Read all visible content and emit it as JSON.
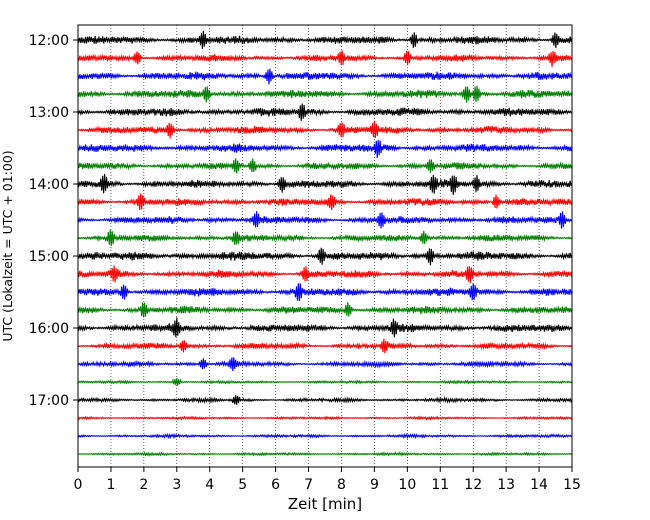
{
  "chart_data": {
    "type": "line",
    "xlabel": "Zeit  [min]",
    "ylabel": "UTC (Lokalzeit = UTC + 01:00)",
    "xlim": [
      0,
      15
    ],
    "x_ticks": [
      "0",
      "1",
      "2",
      "3",
      "4",
      "5",
      "6",
      "7",
      "8",
      "9",
      "10",
      "11",
      "12",
      "13",
      "14",
      "15"
    ],
    "y_ticks": [
      "12:00",
      "13:00",
      "14:00",
      "15:00",
      "16:00",
      "17:00"
    ],
    "grid": "vertical-dotted",
    "trace_interval_min": 15,
    "trace_colors": [
      "#000000",
      "#ff0000",
      "#0000ff",
      "#008000"
    ],
    "traces": [
      {
        "start": "12:00",
        "color": "#000000",
        "amplitude": 1.0,
        "spikes": [
          3.8,
          10.2,
          14.5
        ]
      },
      {
        "start": "12:15",
        "color": "#ff0000",
        "amplitude": 0.8,
        "spikes": [
          1.8,
          8.0,
          10.0,
          14.4
        ]
      },
      {
        "start": "12:30",
        "color": "#0000ff",
        "amplitude": 1.0,
        "spikes": [
          5.8
        ]
      },
      {
        "start": "12:45",
        "color": "#008000",
        "amplitude": 1.0,
        "spikes": [
          3.9,
          11.8,
          12.1
        ]
      },
      {
        "start": "13:00",
        "color": "#000000",
        "amplitude": 1.0,
        "spikes": [
          6.8
        ]
      },
      {
        "start": "13:15",
        "color": "#ff0000",
        "amplitude": 0.9,
        "spikes": [
          2.8,
          8.0,
          9.0
        ]
      },
      {
        "start": "13:30",
        "color": "#0000ff",
        "amplitude": 1.0,
        "spikes": [
          9.1
        ]
      },
      {
        "start": "13:45",
        "color": "#008000",
        "amplitude": 0.8,
        "spikes": [
          4.8,
          5.3,
          10.7
        ]
      },
      {
        "start": "14:00",
        "color": "#000000",
        "amplitude": 1.0,
        "spikes": [
          0.8,
          6.2,
          10.8,
          11.4,
          12.1
        ]
      },
      {
        "start": "14:15",
        "color": "#ff0000",
        "amplitude": 0.9,
        "spikes": [
          1.9,
          7.7,
          12.7
        ]
      },
      {
        "start": "14:30",
        "color": "#0000ff",
        "amplitude": 0.9,
        "spikes": [
          5.4,
          9.2,
          14.7
        ]
      },
      {
        "start": "14:45",
        "color": "#008000",
        "amplitude": 0.8,
        "spikes": [
          1.0,
          4.8,
          10.5
        ]
      },
      {
        "start": "15:00",
        "color": "#000000",
        "amplitude": 1.1,
        "spikes": [
          7.4,
          10.7
        ]
      },
      {
        "start": "15:15",
        "color": "#ff0000",
        "amplitude": 0.9,
        "spikes": [
          1.1,
          6.9,
          11.9
        ]
      },
      {
        "start": "15:30",
        "color": "#0000ff",
        "amplitude": 1.0,
        "spikes": [
          1.4,
          6.7,
          12.0
        ]
      },
      {
        "start": "15:45",
        "color": "#008000",
        "amplitude": 0.9,
        "spikes": [
          2.0,
          8.2
        ]
      },
      {
        "start": "16:00",
        "color": "#000000",
        "amplitude": 1.0,
        "spikes": [
          3.0,
          9.6
        ]
      },
      {
        "start": "16:15",
        "color": "#ff0000",
        "amplitude": 0.7,
        "spikes": [
          3.2,
          9.3
        ]
      },
      {
        "start": "16:30",
        "color": "#0000ff",
        "amplitude": 0.6,
        "spikes": [
          3.8,
          4.7
        ]
      },
      {
        "start": "16:45",
        "color": "#008000",
        "amplitude": 0.3,
        "spikes": [
          3.0
        ]
      },
      {
        "start": "17:00",
        "color": "#000000",
        "amplitude": 0.45,
        "spikes": [
          4.8
        ]
      },
      {
        "start": "17:15",
        "color": "#ff0000",
        "amplitude": 0.3,
        "spikes": []
      },
      {
        "start": "17:30",
        "color": "#0000ff",
        "amplitude": 0.35,
        "spikes": []
      },
      {
        "start": "17:45",
        "color": "#008000",
        "amplitude": 0.3,
        "spikes": []
      }
    ]
  }
}
